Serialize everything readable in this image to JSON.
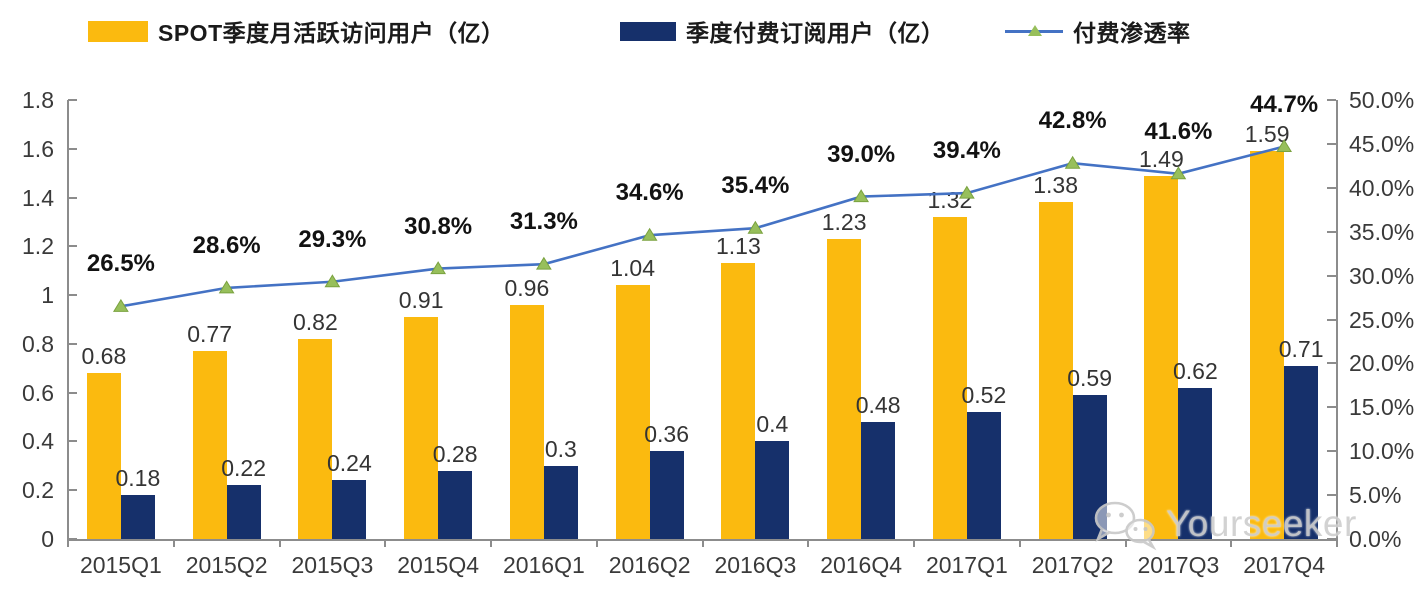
{
  "watermark": {
    "text": "Yourseeker",
    "icon": "wechat-icon"
  },
  "chart_data": {
    "type": "bar",
    "subtype": "combo-bar-line-dual-axis",
    "title": "",
    "categories": [
      "2015Q1",
      "2015Q2",
      "2015Q3",
      "2015Q4",
      "2016Q1",
      "2016Q2",
      "2016Q3",
      "2016Q4",
      "2017Q1",
      "2017Q2",
      "2017Q3",
      "2017Q4"
    ],
    "series": [
      {
        "name": "SPOT季度月活跃访问用户（亿）",
        "type": "bar",
        "axis": "left",
        "color": "#FBBA0F",
        "values": [
          0.68,
          0.77,
          0.82,
          0.91,
          0.96,
          1.04,
          1.13,
          1.23,
          1.32,
          1.38,
          1.49,
          1.59
        ],
        "labels": [
          "0.68",
          "0.77",
          "0.82",
          "0.91",
          "0.96",
          "1.04",
          "1.13",
          "1.23",
          "1.32",
          "1.38",
          "1.49",
          "1.59"
        ]
      },
      {
        "name": "季度付费订阅用户（亿）",
        "type": "bar",
        "axis": "left",
        "color": "#16306B",
        "values": [
          0.18,
          0.22,
          0.24,
          0.28,
          0.3,
          0.36,
          0.4,
          0.48,
          0.52,
          0.59,
          0.62,
          0.71
        ],
        "labels": [
          "0.18",
          "0.22",
          "0.24",
          "0.28",
          "0.3",
          "0.36",
          "0.4",
          "0.48",
          "0.52",
          "0.59",
          "0.62",
          "0.71"
        ]
      },
      {
        "name": "付费渗透率",
        "type": "line",
        "axis": "right",
        "color": "#4472C4",
        "marker": "triangle",
        "marker_color": "#97BF5B",
        "marker_stroke": "#7AA23F",
        "values": [
          26.5,
          28.6,
          29.3,
          30.8,
          31.3,
          34.6,
          35.4,
          39.0,
          39.4,
          42.8,
          41.6,
          44.7
        ],
        "labels": [
          "26.5%",
          "28.6%",
          "29.3%",
          "30.8%",
          "31.3%",
          "34.6%",
          "35.4%",
          "39.0%",
          "39.4%",
          "42.8%",
          "41.6%",
          "44.7%"
        ]
      }
    ],
    "left_axis": {
      "min": 0,
      "max": 1.8,
      "step": 0.2,
      "tick_labels": [
        "0",
        "0.2",
        "0.4",
        "0.6",
        "0.8",
        "1",
        "1.2",
        "1.4",
        "1.6",
        "1.8"
      ]
    },
    "right_axis": {
      "min": 0,
      "max": 50,
      "step": 5,
      "tick_labels": [
        "0.0%",
        "5.0%",
        "10.0%",
        "15.0%",
        "20.0%",
        "25.0%",
        "30.0%",
        "35.0%",
        "40.0%",
        "45.0%",
        "50.0%"
      ]
    },
    "grid": false,
    "legend_position": "top"
  }
}
